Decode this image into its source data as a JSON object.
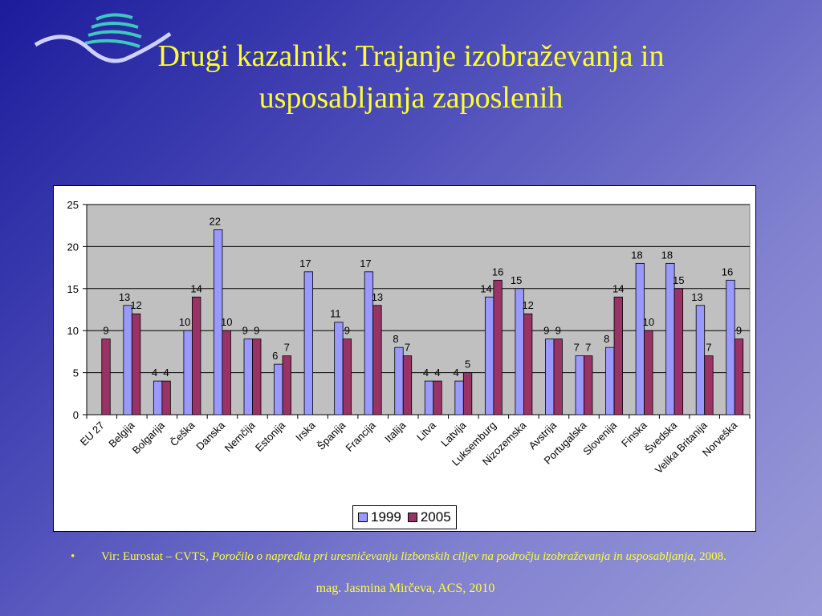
{
  "slide": {
    "title_line1": "Drugi kazalnik: Trajanje izobraževanja in",
    "title_line2": "usposabljanja zaposlenih",
    "source_bullet": "•",
    "source_prefix": "Vir: Eurostat – CVTS, ",
    "source_italic": "Poročilo o napredku pri uresničevanju lizbonskih ciljev na področju izobraževanja in usposabljanja,",
    "source_suffix": " 2008.",
    "footer": "mag. Jasmina Mirčeva, ACS, 2010",
    "logo_icon": "wave-logo-icon"
  },
  "chart_data": {
    "type": "bar",
    "categories": [
      "EU 27",
      "Belgija",
      "Bolgarija",
      "Češka",
      "Danska",
      "Nemčija",
      "Estonija",
      "Irska",
      "Španija",
      "Francija",
      "Italija",
      "Litva",
      "Latvija",
      "Luksemburg",
      "Nizozemska",
      "Avstrija",
      "Portugalska",
      "Slovenija",
      "Finska",
      "Švedska",
      "Velika Britanija",
      "Norveška"
    ],
    "series": [
      {
        "name": "1999",
        "color": "#9999ff",
        "values": [
          null,
          13,
          4,
          10,
          22,
          9,
          6,
          17,
          11,
          17,
          8,
          4,
          4,
          14,
          15,
          9,
          7,
          8,
          18,
          18,
          13,
          16
        ]
      },
      {
        "name": "2005",
        "color": "#993366",
        "values": [
          9,
          12,
          4,
          14,
          10,
          9,
          7,
          null,
          9,
          13,
          7,
          4,
          5,
          16,
          12,
          9,
          7,
          14,
          10,
          15,
          7,
          9
        ]
      }
    ],
    "ylim": [
      0,
      25
    ],
    "yticks": [
      0,
      5,
      10,
      15,
      20,
      25
    ],
    "grid": true,
    "plot_background": "#c0c0c0",
    "legend_position": "bottom"
  }
}
